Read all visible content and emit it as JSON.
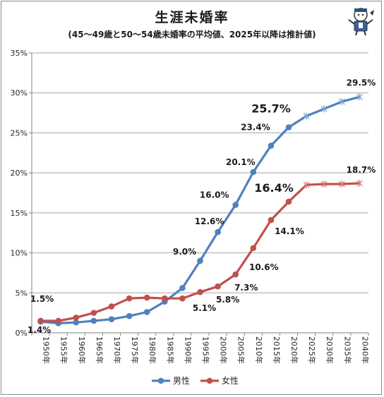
{
  "chart_data": {
    "type": "line",
    "title": "生涯未婚率",
    "subtitle": "(45～49歳と50～54歳未婚率の平均値、2025年以降は推計値)",
    "ylim": [
      0,
      35
    ],
    "y_ticks": [
      "0%",
      "5%",
      "10%",
      "15%",
      "20%",
      "25%",
      "30%",
      "35%"
    ],
    "categories": [
      "1950年",
      "1955年",
      "1960年",
      "1965年",
      "1970年",
      "1975年",
      "1980年",
      "1985年",
      "1990年",
      "1995年",
      "2000年",
      "2005年",
      "2010年",
      "2015年",
      "2020年",
      "2025年",
      "2030年",
      "2035年",
      "2040年"
    ],
    "grid": true,
    "legend_position": "bottom",
    "series": [
      {
        "name": "男性",
        "color": "#4f81bd",
        "values": [
          1.4,
          1.2,
          1.3,
          1.5,
          1.7,
          2.1,
          2.6,
          3.9,
          5.6,
          9.0,
          12.6,
          16.0,
          20.1,
          23.4,
          25.7,
          27.1,
          28.0,
          28.9,
          29.5
        ]
      },
      {
        "name": "女性",
        "color": "#c0504d",
        "values": [
          1.5,
          1.5,
          1.9,
          2.5,
          3.3,
          4.3,
          4.4,
          4.3,
          4.3,
          5.1,
          5.8,
          7.3,
          10.6,
          14.1,
          16.4,
          18.5,
          18.6,
          18.6,
          18.7
        ]
      }
    ],
    "annotations": [
      {
        "label": "1.5%",
        "series": 1,
        "index": 0
      },
      {
        "label": "1.4%",
        "series": 0,
        "index": 0
      },
      {
        "label": "9.0%",
        "series": 0,
        "index": 9
      },
      {
        "label": "12.6%",
        "series": 0,
        "index": 10
      },
      {
        "label": "16.0%",
        "series": 0,
        "index": 11
      },
      {
        "label": "20.1%",
        "series": 0,
        "index": 12
      },
      {
        "label": "23.4%",
        "series": 0,
        "index": 13
      },
      {
        "label": "25.7%",
        "series": 0,
        "index": 14
      },
      {
        "label": "29.5%",
        "series": 0,
        "index": 18
      },
      {
        "label": "5.1%",
        "series": 1,
        "index": 9
      },
      {
        "label": "5.8%",
        "series": 1,
        "index": 10
      },
      {
        "label": "7.3%",
        "series": 1,
        "index": 11
      },
      {
        "label": "10.6%",
        "series": 1,
        "index": 12
      },
      {
        "label": "14.1%",
        "series": 1,
        "index": 13
      },
      {
        "label": "16.4%",
        "series": 1,
        "index": 14
      },
      {
        "label": "18.7%",
        "series": 1,
        "index": 18
      }
    ]
  }
}
